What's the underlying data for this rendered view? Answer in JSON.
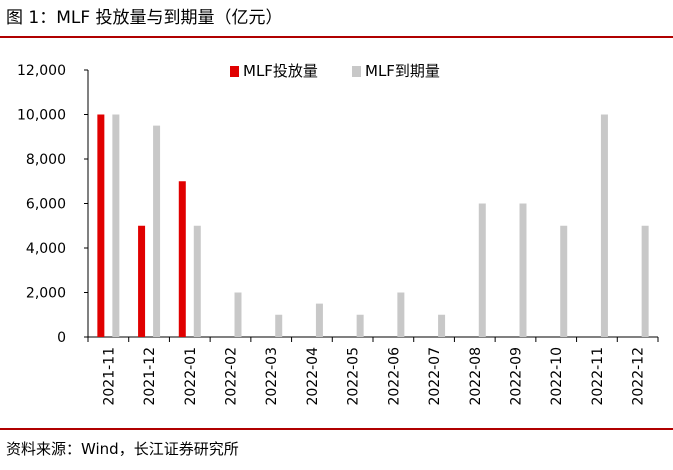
{
  "figure": {
    "title": "图 1：MLF 投放量与到期量（亿元）",
    "source": "资料来源：Wind，长江证券研究所"
  },
  "chart_data": {
    "type": "bar",
    "title": "",
    "xlabel": "",
    "ylabel": "",
    "ylim": [
      0,
      12000
    ],
    "yticks": [
      0,
      2000,
      4000,
      6000,
      8000,
      10000,
      12000
    ],
    "ytick_labels": [
      "0",
      "2,000",
      "4,000",
      "6,000",
      "8,000",
      "10,000",
      "12,000"
    ],
    "grid": false,
    "legend_position": "top-center",
    "categories": [
      "2021-11",
      "2021-12",
      "2022-01",
      "2022-02",
      "2022-03",
      "2022-04",
      "2022-05",
      "2022-06",
      "2022-07",
      "2022-08",
      "2022-09",
      "2022-10",
      "2022-11",
      "2022-12"
    ],
    "series": [
      {
        "name": "MLF投放量",
        "color": "#e00000",
        "values": [
          10000,
          5000,
          7000,
          0,
          0,
          0,
          0,
          0,
          0,
          0,
          0,
          0,
          0,
          0
        ]
      },
      {
        "name": "MLF到期量",
        "color": "#c8c8c8",
        "values": [
          10000,
          9500,
          5000,
          2000,
          1000,
          1500,
          1000,
          2000,
          1000,
          6000,
          6000,
          5000,
          10000,
          5000
        ]
      }
    ]
  }
}
